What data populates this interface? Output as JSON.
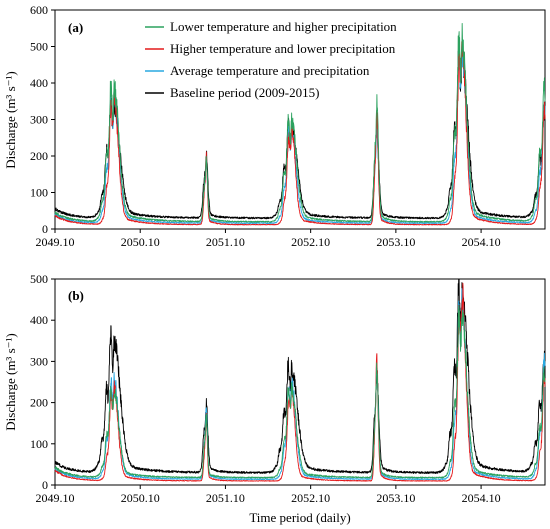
{
  "figure": {
    "xlabel": "Time period (daily)"
  },
  "legend": [
    {
      "label": "Lower temperature and higher precipitation",
      "color": "#2ca25f"
    },
    {
      "label": "Higher temperature and lower precipitation",
      "color": "#e41a1c"
    },
    {
      "label": "Average temperature and precipitation",
      "color": "#29a8e0"
    },
    {
      "label": "Baseline period (2009-2015)",
      "color": "#000000"
    }
  ],
  "chart_data": [
    {
      "type": "line",
      "panel_label": "(a)",
      "ylabel": "Discharge (m³ s⁻¹)",
      "ylim": [
        0,
        600
      ],
      "yticks": [
        0,
        100,
        200,
        300,
        400,
        500,
        600
      ],
      "xlim": [
        "2049.10",
        "2055.07"
      ],
      "xticks": [
        "2049.10",
        "2050.10",
        "2051.10",
        "2052.10",
        "2053.10",
        "2054.10"
      ],
      "legend_position": "top-center",
      "series": [
        {
          "name": "Lower temperature and higher precipitation",
          "color": "#2ca25f",
          "peaks": [
            {
              "x": "2050.06",
              "y": 370,
              "w": 40,
              "r": 0.35,
              "q": 0.4
            },
            {
              "x": "2051.07",
              "y": 175,
              "w": 14,
              "r": 0.3,
              "q": 0.2
            },
            {
              "x": "2052.07",
              "y": 280,
              "w": 38,
              "r": 0.35,
              "q": 0.45
            },
            {
              "x": "2053.07",
              "y": 330,
              "w": 14,
              "r": 0.3,
              "q": 0.4
            },
            {
              "x": "2054.07",
              "y": 505,
              "w": 38,
              "r": 0.35,
              "q": 0.4
            },
            {
              "x": "2055.07",
              "y": 365,
              "w": 40,
              "r": 0.35,
              "q": 0.45
            }
          ],
          "baseflow": 20
        },
        {
          "name": "Higher temperature and lower precipitation",
          "color": "#e41a1c",
          "peaks": [
            {
              "x": "2050.06",
              "y": 355,
              "w": 32,
              "r": 0.3,
              "q": 0.45
            },
            {
              "x": "2051.07",
              "y": 185,
              "w": 12,
              "r": 0.3,
              "q": 0.2
            },
            {
              "x": "2052.07",
              "y": 265,
              "w": 30,
              "r": 0.3,
              "q": 0.4
            },
            {
              "x": "2053.07",
              "y": 300,
              "w": 12,
              "r": 0.3,
              "q": 0.4
            },
            {
              "x": "2054.07",
              "y": 500,
              "w": 30,
              "r": 0.3,
              "q": 0.45
            },
            {
              "x": "2055.07",
              "y": 345,
              "w": 32,
              "r": 0.3,
              "q": 0.45
            }
          ],
          "baseflow": 12
        },
        {
          "name": "Average temperature and precipitation",
          "color": "#29a8e0",
          "peaks": [
            {
              "x": "2050.06",
              "y": 340,
              "w": 36,
              "r": 0.35,
              "q": 0.45
            },
            {
              "x": "2051.07",
              "y": 170,
              "w": 13,
              "r": 0.3,
              "q": 0.2
            },
            {
              "x": "2052.07",
              "y": 255,
              "w": 34,
              "r": 0.35,
              "q": 0.45
            },
            {
              "x": "2053.07",
              "y": 265,
              "w": 13,
              "r": 0.3,
              "q": 0.4
            },
            {
              "x": "2054.07",
              "y": 470,
              "w": 34,
              "r": 0.35,
              "q": 0.45
            },
            {
              "x": "2055.07",
              "y": 325,
              "w": 36,
              "r": 0.35,
              "q": 0.45
            }
          ],
          "baseflow": 16
        },
        {
          "name": "Baseline period (2009-2015)",
          "color": "#000000",
          "peaks": [
            {
              "x": "2050.06",
              "y": 310,
              "w": 42,
              "r": 0.4,
              "q": 0.5
            },
            {
              "x": "2051.07",
              "y": 175,
              "w": 16,
              "r": 0.3,
              "q": 0.25
            },
            {
              "x": "2052.07",
              "y": 250,
              "w": 40,
              "r": 0.4,
              "q": 0.5
            },
            {
              "x": "2053.07",
              "y": 260,
              "w": 15,
              "r": 0.3,
              "q": 0.45
            },
            {
              "x": "2054.07",
              "y": 445,
              "w": 40,
              "r": 0.4,
              "q": 0.5
            },
            {
              "x": "2055.07",
              "y": 275,
              "w": 42,
              "r": 0.4,
              "q": 0.5
            }
          ],
          "baseflow": 30
        }
      ]
    },
    {
      "type": "line",
      "panel_label": "(b)",
      "ylabel": "Discharge (m³ s⁻¹)",
      "ylim": [
        0,
        500
      ],
      "yticks": [
        0,
        100,
        200,
        300,
        400,
        500
      ],
      "xlim": [
        "2049.10",
        "2055.07"
      ],
      "xticks": [
        "2049.10",
        "2050.10",
        "2051.10",
        "2052.10",
        "2053.10",
        "2054.10"
      ],
      "series": [
        {
          "name": "Lower temperature and higher precipitation",
          "color": "#2ca25f",
          "peaks": [
            {
              "x": "2050.06",
              "y": 215,
              "w": 38,
              "r": 0.35,
              "q": 0.4
            },
            {
              "x": "2051.07",
              "y": 150,
              "w": 13,
              "r": 0.3,
              "q": 0.2
            },
            {
              "x": "2052.07",
              "y": 215,
              "w": 36,
              "r": 0.35,
              "q": 0.45
            },
            {
              "x": "2053.07",
              "y": 260,
              "w": 13,
              "r": 0.3,
              "q": 0.4
            },
            {
              "x": "2054.07",
              "y": 400,
              "w": 36,
              "r": 0.35,
              "q": 0.45
            },
            {
              "x": "2055.07",
              "y": 255,
              "w": 38,
              "r": 0.35,
              "q": 0.45
            }
          ],
          "baseflow": 18
        },
        {
          "name": "Higher temperature and lower precipitation",
          "color": "#e41a1c",
          "peaks": [
            {
              "x": "2050.06",
              "y": 230,
              "w": 30,
              "r": 0.3,
              "q": 0.45
            },
            {
              "x": "2051.07",
              "y": 160,
              "w": 11,
              "r": 0.3,
              "q": 0.2
            },
            {
              "x": "2052.07",
              "y": 225,
              "w": 28,
              "r": 0.3,
              "q": 0.4
            },
            {
              "x": "2053.07",
              "y": 300,
              "w": 11,
              "r": 0.3,
              "q": 0.4
            },
            {
              "x": "2054.07",
              "y": 460,
              "w": 28,
              "r": 0.3,
              "q": 0.45
            },
            {
              "x": "2055.07",
              "y": 280,
              "w": 30,
              "r": 0.3,
              "q": 0.45
            }
          ],
          "baseflow": 10
        },
        {
          "name": "Average temperature and precipitation",
          "color": "#29a8e0",
          "peaks": [
            {
              "x": "2050.06",
              "y": 245,
              "w": 34,
              "r": 0.35,
              "q": 0.45
            },
            {
              "x": "2051.07",
              "y": 180,
              "w": 12,
              "r": 0.3,
              "q": 0.2
            },
            {
              "x": "2052.07",
              "y": 235,
              "w": 32,
              "r": 0.35,
              "q": 0.45
            },
            {
              "x": "2053.07",
              "y": 280,
              "w": 12,
              "r": 0.3,
              "q": 0.4
            },
            {
              "x": "2054.07",
              "y": 430,
              "w": 32,
              "r": 0.35,
              "q": 0.45
            },
            {
              "x": "2055.07",
              "y": 295,
              "w": 34,
              "r": 0.35,
              "q": 0.45
            }
          ],
          "baseflow": 14
        },
        {
          "name": "Baseline period (2009-2015)",
          "color": "#000000",
          "peaks": [
            {
              "x": "2050.06",
              "y": 320,
              "w": 44,
              "r": 0.4,
              "q": 0.5
            },
            {
              "x": "2051.07",
              "y": 165,
              "w": 16,
              "r": 0.3,
              "q": 0.25
            },
            {
              "x": "2052.07",
              "y": 255,
              "w": 42,
              "r": 0.4,
              "q": 0.5
            },
            {
              "x": "2053.07",
              "y": 240,
              "w": 15,
              "r": 0.3,
              "q": 0.45
            },
            {
              "x": "2054.07",
              "y": 435,
              "w": 42,
              "r": 0.4,
              "q": 0.5
            },
            {
              "x": "2055.07",
              "y": 270,
              "w": 44,
              "r": 0.4,
              "q": 0.5
            }
          ],
          "baseflow": 30
        }
      ]
    }
  ]
}
